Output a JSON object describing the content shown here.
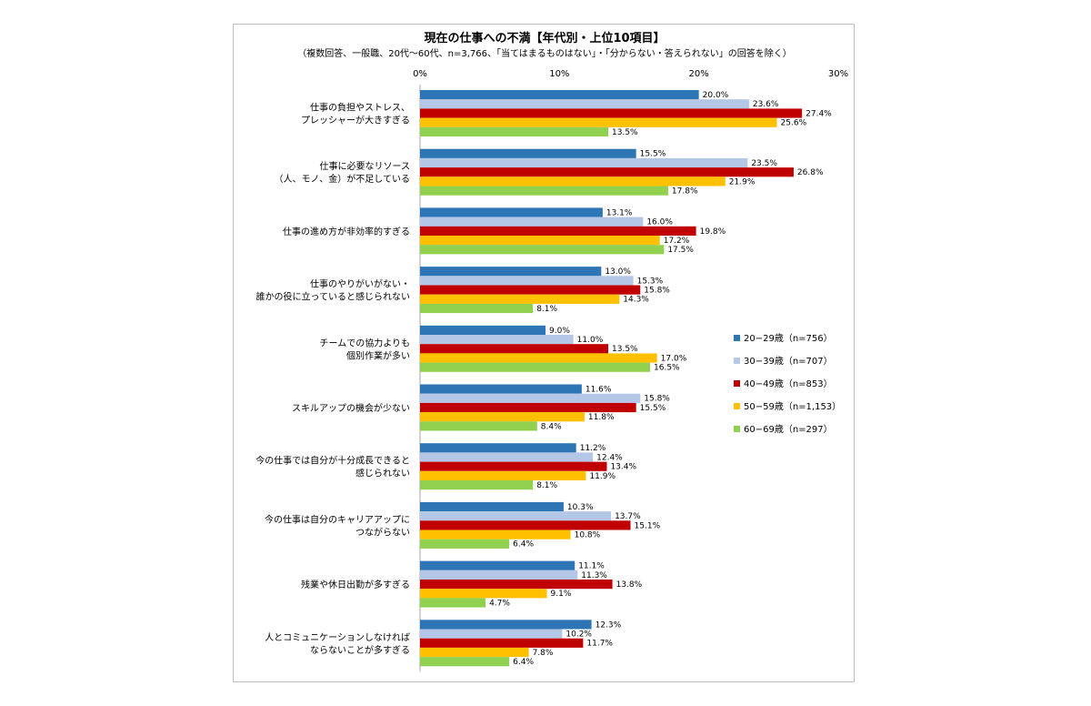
{
  "colors": {
    "series": [
      "#2e75b6",
      "#b4c7e7",
      "#c00000",
      "#ffc000",
      "#92d050"
    ],
    "frame": "#bfbfbf",
    "axis": "#a6a6a6"
  },
  "chart_data": {
    "type": "bar",
    "orientation": "horizontal",
    "title": "現在の仕事への不満【年代別・上位10項目】",
    "subtitle": "（複数回答、一般職、20代～60代、n=3,766、「当てはまるものはない」・「分からない・答えられない」の回答を除く）",
    "xlim": [
      0,
      30
    ],
    "ticks": [
      0,
      10,
      20,
      30
    ],
    "tick_labels": [
      "0%",
      "10%",
      "20%",
      "30%"
    ],
    "grid": false,
    "legend_position": "right",
    "categories": [
      [
        "仕事の負担やストレス、",
        "プレッシャーが大きすぎる"
      ],
      [
        "仕事に必要なリソース",
        "（人、モノ、金）が不足している"
      ],
      [
        "仕事の進め方が非効率的すぎる"
      ],
      [
        "仕事のやりがいがない・",
        "誰かの役に立っていると感じられない"
      ],
      [
        "チームでの協力よりも",
        "個別作業が多い"
      ],
      [
        "スキルアップの機会が少ない"
      ],
      [
        "今の仕事では自分が十分成長できると",
        "感じられない"
      ],
      [
        "今の仕事は自分のキャリアアップに",
        "つながらない"
      ],
      [
        "残業や休日出勤が多すぎる"
      ],
      [
        "人とコミュニケーションしなければ",
        "ならないことが多すぎる"
      ]
    ],
    "series": [
      {
        "name": "20−29歳（n=756）",
        "values": [
          20.0,
          15.5,
          13.1,
          13.0,
          9.0,
          11.6,
          11.2,
          10.3,
          11.1,
          12.3
        ]
      },
      {
        "name": "30−39歳（n=707）",
        "values": [
          23.6,
          23.5,
          16.0,
          15.3,
          11.0,
          15.8,
          12.4,
          13.7,
          11.3,
          10.2
        ]
      },
      {
        "name": "40−49歳（n=853）",
        "values": [
          27.4,
          26.8,
          19.8,
          15.8,
          13.5,
          15.5,
          13.4,
          15.1,
          13.8,
          11.7
        ]
      },
      {
        "name": "50−59歳（n=1,153）",
        "values": [
          25.6,
          21.9,
          17.2,
          14.3,
          17.0,
          11.8,
          11.9,
          10.8,
          9.1,
          7.8
        ]
      },
      {
        "name": "60−69歳（n=297）",
        "values": [
          13.5,
          17.8,
          17.5,
          8.1,
          16.5,
          8.4,
          8.1,
          6.4,
          4.7,
          6.4
        ]
      }
    ]
  }
}
